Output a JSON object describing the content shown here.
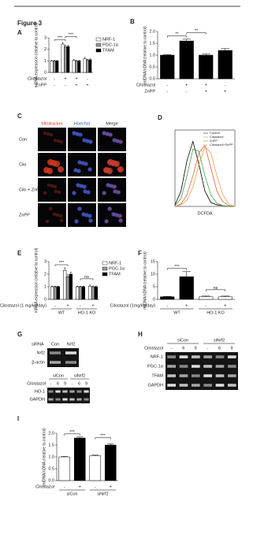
{
  "figure_title": "Figure 3",
  "chart_data": [
    {
      "type": "bar",
      "panel_label": "A",
      "ylabel": "mRNA expression (relative to control)",
      "ylim": [
        0,
        3
      ],
      "yticks": [
        0,
        1,
        2,
        3
      ],
      "series": [
        {
          "name": "NRF-1",
          "color": "#ffffff",
          "values": [
            1,
            2.45,
            1.05,
            1.2
          ],
          "errors": [
            0.05,
            0.12,
            0.06,
            0.1
          ]
        },
        {
          "name": "PGC-1α",
          "color": "#9a9a9a",
          "values": [
            1,
            2.2,
            1.0,
            1.05
          ],
          "errors": [
            0.05,
            0.15,
            0.05,
            0.08
          ]
        },
        {
          "name": "TFAM",
          "color": "#000000",
          "values": [
            1,
            2.25,
            1.0,
            1.1
          ],
          "errors": [
            0.05,
            0.1,
            0.05,
            0.08
          ]
        }
      ],
      "conditions": [
        {
          "name": "Cilostazol",
          "values": [
            "-",
            "+",
            "+",
            "-"
          ]
        },
        {
          "name": "ZnPP",
          "values": [
            "-",
            "-",
            "+",
            "+"
          ]
        }
      ],
      "annotations": [
        {
          "text": "***",
          "from": 0,
          "to": 1
        },
        {
          "text": "***",
          "from": 1,
          "to": 2
        }
      ]
    },
    {
      "type": "bar",
      "panel_label": "B",
      "ylabel": "mtDNA/nDNA (relative to control)",
      "ylim": [
        0,
        2
      ],
      "yticks": [
        {
          "value": 0,
          "label": "0.0"
        },
        {
          "value": 0.5,
          "label": "0.5"
        },
        {
          "value": 1,
          "label": "1.0"
        },
        {
          "value": 1.5,
          "label": "1.5"
        },
        {
          "value": 2,
          "label": "2.0"
        }
      ],
      "series": [
        {
          "name": "mtDNA/nDNA",
          "color": "#000000",
          "values": [
            1.0,
            1.6,
            1.0,
            1.2
          ],
          "errors": [
            0.03,
            0.08,
            0.05,
            0.08
          ]
        }
      ],
      "conditions": [
        {
          "name": "Cilostazol",
          "values": [
            "-",
            "+",
            "+",
            "-"
          ]
        },
        {
          "name": "ZnPP",
          "values": [
            "-",
            "-",
            "+",
            "+"
          ]
        }
      ],
      "annotations": [
        {
          "text": "**",
          "from": 0,
          "to": 1
        },
        {
          "text": "**",
          "from": 1,
          "to": 2
        }
      ]
    },
    {
      "type": "line",
      "panel_label": "D",
      "xlabel": "DCFDA",
      "x": [
        0,
        1,
        2,
        3,
        4,
        5,
        6,
        7,
        8,
        9,
        10
      ],
      "xlim": [
        0,
        10
      ],
      "ylim": [
        0,
        100
      ],
      "series": [
        {
          "name": "Control",
          "color": "#000000",
          "values": [
            2,
            20,
            60,
            85,
            55,
            20,
            5,
            2,
            1,
            0,
            0
          ]
        },
        {
          "name": "Cilostazol",
          "color": "#e06040",
          "values": [
            0,
            3,
            15,
            40,
            70,
            80,
            50,
            20,
            6,
            1,
            0
          ]
        },
        {
          "name": "ZnPP",
          "color": "#40a040",
          "values": [
            1,
            10,
            40,
            75,
            72,
            40,
            15,
            4,
            1,
            0,
            0
          ]
        },
        {
          "name": "Cilostazol+ZnPP",
          "color": "#f0a040",
          "values": [
            0,
            2,
            8,
            25,
            55,
            78,
            70,
            40,
            15,
            3,
            0
          ]
        }
      ]
    },
    {
      "type": "bar",
      "panel_label": "E",
      "ylabel": "mRNA expression (relative to control)",
      "ylim": [
        0,
        3
      ],
      "yticks": [
        0,
        1,
        2,
        3
      ],
      "series": [
        {
          "name": "NRF-1",
          "color": "#ffffff",
          "values": [
            1,
            2.3,
            1,
            1.05
          ],
          "errors": [
            0.05,
            0.2,
            0.05,
            0.08
          ]
        },
        {
          "name": "PGC-1α",
          "color": "#9a9a9a",
          "values": [
            1,
            1.8,
            1,
            1.0
          ],
          "errors": [
            0.05,
            0.15,
            0.05,
            0.06
          ]
        },
        {
          "name": "TFAM",
          "color": "#000000",
          "values": [
            1,
            2.0,
            1,
            1.0
          ],
          "errors": [
            0.05,
            0.15,
            0.05,
            0.06
          ]
        }
      ],
      "conditions": [
        {
          "name": "Cilostazol (1 mg/kg/day)",
          "values": [
            "-",
            "+",
            "-",
            "+"
          ]
        }
      ],
      "groups": [
        "WT",
        "HO-1 KO"
      ],
      "annotations": [
        {
          "text": "***",
          "from": 0,
          "to": 1
        },
        {
          "text": "ns",
          "from": 2,
          "to": 3
        }
      ]
    },
    {
      "type": "bar",
      "panel_label": "F",
      "ylabel": "mtDNA/nDNA (relative to control)",
      "ylim": [
        0,
        15
      ],
      "yticks": [
        0,
        5,
        10,
        15
      ],
      "series": [
        {
          "name": "mtDNA/nDNA",
          "color": [
            "#000000",
            "#000000",
            "#ffffff",
            "#ffffff"
          ],
          "values": [
            1,
            9,
            1,
            1
          ],
          "errors": [
            0.2,
            2,
            0.3,
            0.3
          ]
        }
      ],
      "conditions": [
        {
          "name": "Cilostazol (1mg/kg/day)",
          "values": [
            "-",
            "+",
            "-",
            "+"
          ]
        }
      ],
      "groups": [
        "WT",
        "HO-1 KO"
      ],
      "annotations": [
        {
          "text": "***",
          "from": 0,
          "to": 1
        },
        {
          "text": "ns",
          "from": 2,
          "to": 3
        }
      ]
    },
    {
      "type": "bar",
      "panel_label": "I",
      "ylabel": "mtDNA/nDNA (relative to control)",
      "ylim": [
        0,
        2
      ],
      "yticks": [
        {
          "value": 0,
          "label": "0.0"
        },
        {
          "value": 0.5,
          "label": "0.5"
        },
        {
          "value": 1,
          "label": "1.0"
        },
        {
          "value": 1.5,
          "label": "1.5"
        },
        {
          "value": 2,
          "label": "2.0"
        }
      ],
      "series": [
        {
          "name": "mtDNA/nDNA",
          "color": [
            "#ffffff",
            "#000000",
            "#ffffff",
            "#000000"
          ],
          "values": [
            1.0,
            1.8,
            1.05,
            1.5
          ],
          "errors": [
            0.02,
            0.04,
            0.03,
            0.05
          ]
        }
      ],
      "conditions": [
        {
          "name": "Cilostazol",
          "values": [
            "-",
            "+",
            "-",
            "+"
          ]
        }
      ],
      "groups": [
        "siCon",
        "siNrf2"
      ],
      "annotations": [
        {
          "text": "***",
          "from": 0,
          "to": 1
        },
        {
          "text": "***",
          "from": 2,
          "to": 3
        }
      ]
    }
  ],
  "panel_c": {
    "label": "C",
    "columns": [
      "Mitotracker",
      "Hoechst",
      "Merge"
    ],
    "rows": [
      "Con",
      "Cilo",
      "Cilo + ZnPP",
      "ZnPP"
    ]
  },
  "panel_g": {
    "label": "G",
    "top": {
      "header": "siRNA",
      "lanes": [
        "Con",
        "Nrf2"
      ],
      "rows": [
        "Nrf2",
        "β-actin"
      ]
    },
    "bottom": {
      "groups": [
        "siCon",
        "siNrf2"
      ],
      "treatment": "Cilostazol",
      "lanes": [
        "-",
        "6",
        "9",
        "-",
        "6",
        "9"
      ],
      "rows": [
        "HO-1",
        "GAPDH"
      ]
    }
  },
  "panel_h": {
    "label": "H",
    "groups": [
      "siCon",
      "siNrf2"
    ],
    "treatment": "Cilostazol",
    "lanes": [
      "-",
      "6",
      "9",
      "-",
      "6",
      "9"
    ],
    "rows": [
      "NRF-1",
      "PGC-1α",
      "TFAM",
      "GAPDH"
    ]
  }
}
